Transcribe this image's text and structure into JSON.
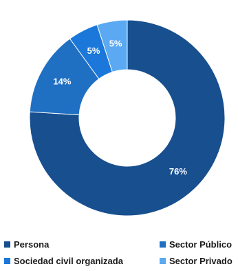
{
  "chart_data": {
    "type": "pie",
    "variant": "donut",
    "categories": [
      "Persona",
      "Sector Público",
      "Sociedad civil organizada",
      "Sector Privado"
    ],
    "values": [
      76,
      14,
      5,
      5
    ],
    "value_labels": [
      "76%",
      "14%",
      "5%",
      "5%"
    ],
    "colors": [
      "#174f8f",
      "#1f6fc3",
      "#1b78da",
      "#5aa9f2"
    ],
    "legend": {
      "placement": "bottom",
      "entries": [
        {
          "label": "Persona",
          "color": "#174f8f"
        },
        {
          "label": "Sector Público",
          "color": "#1f6fc3"
        },
        {
          "label": "Sociedad civil organizada",
          "color": "#1b78da"
        },
        {
          "label": "Sector Privado",
          "color": "#5aa9f2"
        }
      ]
    }
  }
}
